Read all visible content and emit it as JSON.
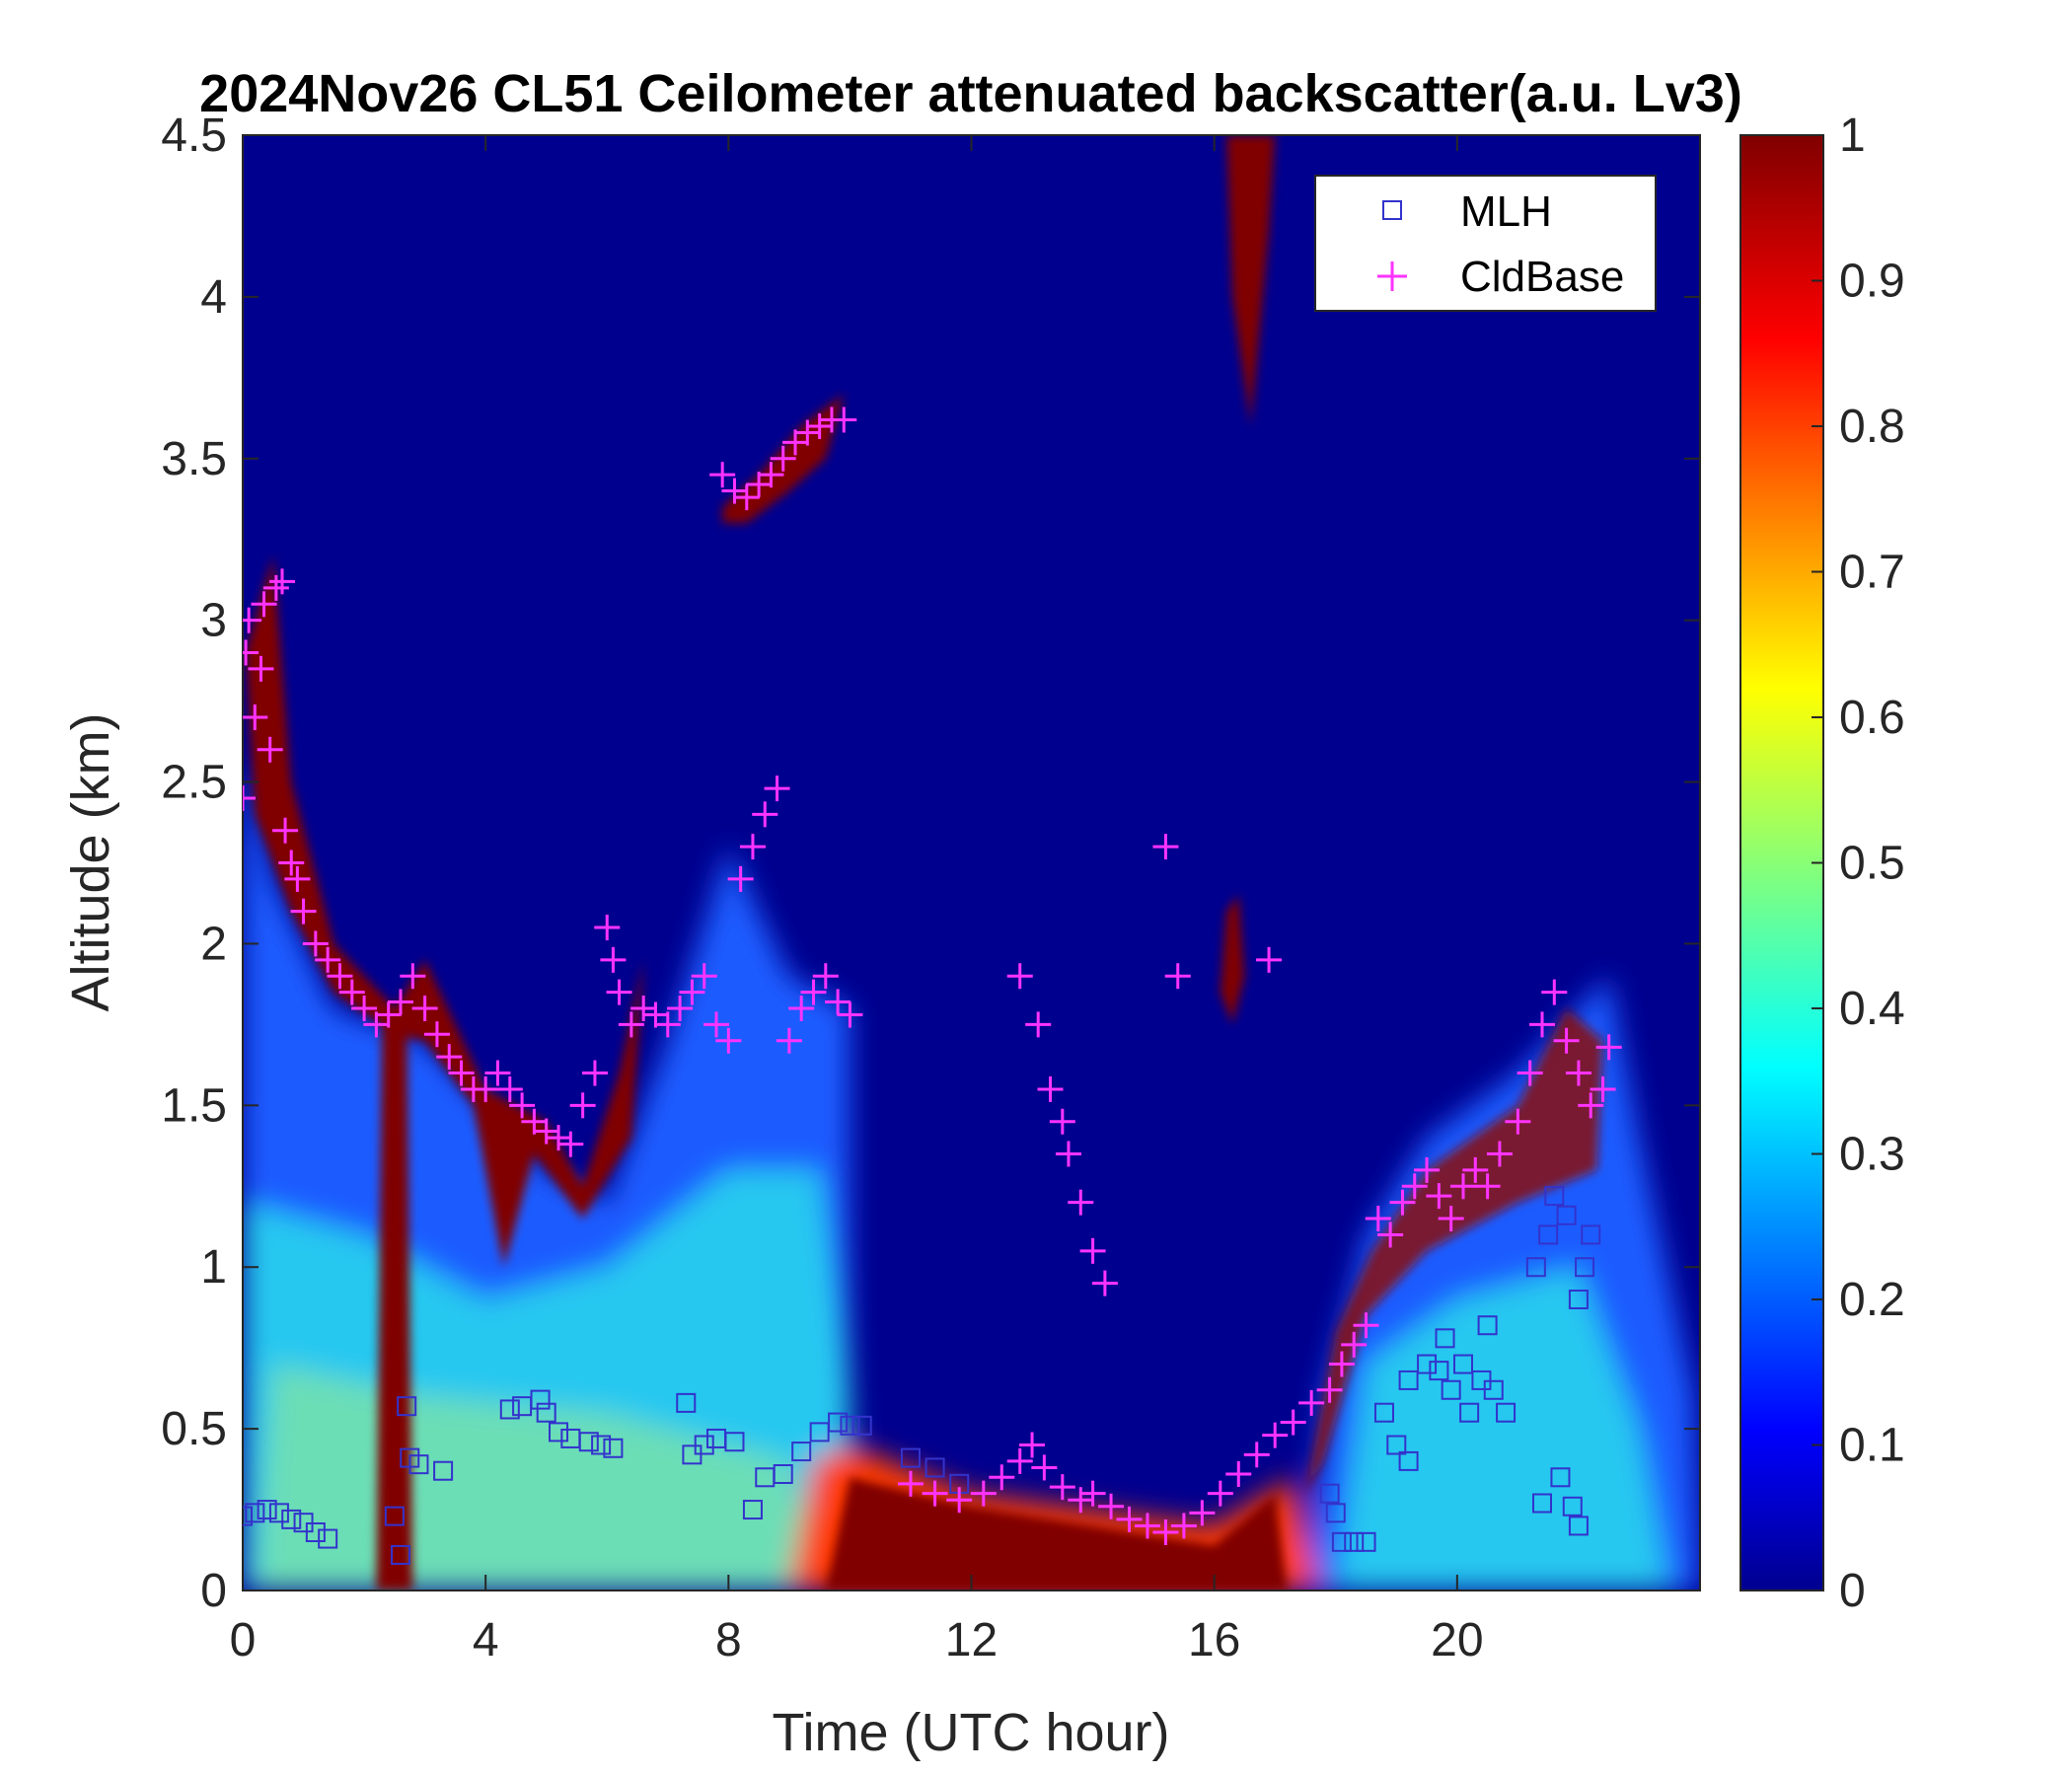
{
  "chart_data": {
    "type": "heatmap",
    "title": "2024Nov26 CL51 Ceilometer attenuated backscatter(a.u. Lv3)",
    "xlabel": "Time (UTC hour)",
    "ylabel": "Altitude (km)",
    "xlim": [
      0,
      24
    ],
    "ylim": [
      0,
      4.5
    ],
    "xticks": [
      0,
      4,
      8,
      12,
      16,
      20
    ],
    "xtick_labels": [
      "0",
      "4",
      "8",
      "12",
      "16",
      "20"
    ],
    "yticks": [
      0,
      0.5,
      1,
      1.5,
      2,
      2.5,
      3,
      3.5,
      4,
      4.5
    ],
    "ytick_labels": [
      "0",
      "0.5",
      "1",
      "1.5",
      "2",
      "2.5",
      "3",
      "3.5",
      "4",
      "4.5"
    ],
    "colorbar": {
      "colormap": "jet",
      "range": [
        0,
        1
      ],
      "ticks": [
        0,
        0.1,
        0.2,
        0.3,
        0.4,
        0.5,
        0.6,
        0.7,
        0.8,
        0.9,
        1
      ],
      "tick_labels": [
        "0",
        "0.1",
        "0.2",
        "0.3",
        "0.4",
        "0.5",
        "0.6",
        "0.7",
        "0.8",
        "0.9",
        "1"
      ]
    },
    "legend": {
      "placement": "top-right",
      "entries": [
        {
          "label": "MLH",
          "marker": "square",
          "color": "#3333cc"
        },
        {
          "label": "CldBase",
          "marker": "plus",
          "color": "#ff33ff"
        }
      ]
    },
    "series": [
      {
        "name": "MLH",
        "marker": "square",
        "color": "#3333cc",
        "points": [
          [
            0.0,
            0.23
          ],
          [
            0.2,
            0.24
          ],
          [
            0.4,
            0.25
          ],
          [
            0.6,
            0.24
          ],
          [
            0.8,
            0.22
          ],
          [
            1.0,
            0.21
          ],
          [
            1.2,
            0.18
          ],
          [
            1.4,
            0.16
          ],
          [
            2.5,
            0.23
          ],
          [
            2.6,
            0.11
          ],
          [
            2.7,
            0.57
          ],
          [
            2.75,
            0.41
          ],
          [
            2.9,
            0.39
          ],
          [
            3.3,
            0.37
          ],
          [
            4.4,
            0.56
          ],
          [
            4.6,
            0.57
          ],
          [
            4.9,
            0.59
          ],
          [
            5.0,
            0.55
          ],
          [
            5.2,
            0.49
          ],
          [
            5.4,
            0.47
          ],
          [
            5.7,
            0.46
          ],
          [
            5.9,
            0.45
          ],
          [
            6.1,
            0.44
          ],
          [
            7.3,
            0.58
          ],
          [
            7.4,
            0.42
          ],
          [
            7.6,
            0.45
          ],
          [
            7.8,
            0.47
          ],
          [
            8.1,
            0.46
          ],
          [
            8.4,
            0.25
          ],
          [
            8.6,
            0.35
          ],
          [
            8.9,
            0.36
          ],
          [
            9.2,
            0.43
          ],
          [
            9.5,
            0.49
          ],
          [
            9.8,
            0.52
          ],
          [
            10.0,
            0.51
          ],
          [
            10.2,
            0.51
          ],
          [
            11.0,
            0.41
          ],
          [
            11.4,
            0.38
          ],
          [
            11.8,
            0.33
          ],
          [
            17.9,
            0.3
          ],
          [
            18.0,
            0.24
          ],
          [
            18.1,
            0.15
          ],
          [
            18.3,
            0.15
          ],
          [
            18.5,
            0.15
          ],
          [
            18.8,
            0.55
          ],
          [
            19.0,
            0.45
          ],
          [
            19.2,
            0.4
          ],
          [
            19.2,
            0.65
          ],
          [
            19.5,
            0.7
          ],
          [
            19.7,
            0.68
          ],
          [
            19.8,
            0.78
          ],
          [
            19.9,
            0.62
          ],
          [
            20.1,
            0.7
          ],
          [
            20.2,
            0.55
          ],
          [
            20.4,
            0.65
          ],
          [
            20.6,
            0.62
          ],
          [
            20.8,
            0.55
          ],
          [
            20.5,
            0.82
          ],
          [
            21.4,
            0.27
          ],
          [
            21.7,
            0.35
          ],
          [
            21.9,
            0.26
          ],
          [
            22.0,
            0.2
          ],
          [
            21.3,
            1.0
          ],
          [
            21.5,
            1.1
          ],
          [
            21.6,
            1.22
          ],
          [
            21.8,
            1.16
          ],
          [
            22.0,
            0.9
          ],
          [
            22.1,
            1.0
          ],
          [
            22.2,
            1.1
          ]
        ]
      },
      {
        "name": "CldBase",
        "marker": "plus",
        "color": "#ff33ff",
        "points": [
          [
            0.0,
            2.45
          ],
          [
            0.05,
            2.9
          ],
          [
            0.1,
            3.0
          ],
          [
            0.2,
            2.7
          ],
          [
            0.3,
            2.85
          ],
          [
            0.35,
            3.05
          ],
          [
            0.45,
            2.6
          ],
          [
            0.55,
            3.1
          ],
          [
            0.65,
            3.12
          ],
          [
            0.7,
            2.35
          ],
          [
            0.8,
            2.25
          ],
          [
            0.9,
            2.2
          ],
          [
            1.0,
            2.1
          ],
          [
            1.2,
            2.0
          ],
          [
            1.4,
            1.95
          ],
          [
            1.6,
            1.9
          ],
          [
            1.8,
            1.85
          ],
          [
            2.0,
            1.8
          ],
          [
            2.2,
            1.75
          ],
          [
            2.4,
            1.78
          ],
          [
            2.6,
            1.82
          ],
          [
            2.8,
            1.9
          ],
          [
            3.0,
            1.8
          ],
          [
            3.2,
            1.72
          ],
          [
            3.4,
            1.65
          ],
          [
            3.6,
            1.6
          ],
          [
            3.8,
            1.55
          ],
          [
            4.0,
            1.55
          ],
          [
            4.2,
            1.6
          ],
          [
            4.4,
            1.55
          ],
          [
            4.6,
            1.5
          ],
          [
            4.8,
            1.45
          ],
          [
            5.0,
            1.42
          ],
          [
            5.2,
            1.4
          ],
          [
            5.4,
            1.38
          ],
          [
            5.6,
            1.5
          ],
          [
            5.8,
            1.6
          ],
          [
            6.0,
            2.05
          ],
          [
            6.1,
            1.95
          ],
          [
            6.2,
            1.85
          ],
          [
            6.4,
            1.75
          ],
          [
            6.6,
            1.8
          ],
          [
            6.8,
            1.78
          ],
          [
            7.0,
            1.75
          ],
          [
            7.2,
            1.8
          ],
          [
            7.4,
            1.85
          ],
          [
            7.6,
            1.9
          ],
          [
            7.8,
            1.75
          ],
          [
            8.0,
            1.7
          ],
          [
            8.2,
            2.2
          ],
          [
            8.4,
            2.3
          ],
          [
            8.6,
            2.4
          ],
          [
            8.8,
            2.48
          ],
          [
            9.0,
            1.7
          ],
          [
            9.2,
            1.8
          ],
          [
            9.4,
            1.85
          ],
          [
            9.6,
            1.9
          ],
          [
            9.8,
            1.82
          ],
          [
            10.0,
            1.78
          ],
          [
            7.9,
            3.45
          ],
          [
            8.1,
            3.4
          ],
          [
            8.3,
            3.38
          ],
          [
            8.5,
            3.42
          ],
          [
            8.7,
            3.45
          ],
          [
            8.9,
            3.5
          ],
          [
            9.1,
            3.55
          ],
          [
            9.3,
            3.58
          ],
          [
            9.5,
            3.6
          ],
          [
            9.7,
            3.62
          ],
          [
            9.9,
            3.62
          ],
          [
            11.0,
            0.33
          ],
          [
            11.4,
            0.3
          ],
          [
            11.8,
            0.28
          ],
          [
            12.2,
            0.3
          ],
          [
            12.5,
            0.35
          ],
          [
            12.8,
            0.4
          ],
          [
            13.0,
            0.45
          ],
          [
            13.2,
            0.38
          ],
          [
            13.5,
            0.32
          ],
          [
            13.8,
            0.28
          ],
          [
            14.0,
            0.3
          ],
          [
            14.3,
            0.26
          ],
          [
            14.6,
            0.22
          ],
          [
            14.9,
            0.2
          ],
          [
            15.2,
            0.18
          ],
          [
            15.5,
            0.2
          ],
          [
            15.8,
            0.24
          ],
          [
            16.1,
            0.3
          ],
          [
            16.4,
            0.36
          ],
          [
            16.7,
            0.42
          ],
          [
            17.0,
            0.48
          ],
          [
            17.3,
            0.52
          ],
          [
            17.6,
            0.58
          ],
          [
            17.9,
            0.62
          ],
          [
            18.1,
            0.7
          ],
          [
            18.3,
            0.76
          ],
          [
            18.5,
            0.82
          ],
          [
            12.8,
            1.9
          ],
          [
            13.1,
            1.75
          ],
          [
            13.3,
            1.55
          ],
          [
            13.5,
            1.45
          ],
          [
            13.6,
            1.35
          ],
          [
            13.8,
            1.2
          ],
          [
            14.0,
            1.05
          ],
          [
            14.2,
            0.95
          ],
          [
            15.2,
            2.3
          ],
          [
            15.4,
            1.9
          ],
          [
            16.9,
            1.95
          ],
          [
            18.7,
            1.15
          ],
          [
            18.9,
            1.1
          ],
          [
            19.1,
            1.2
          ],
          [
            19.3,
            1.25
          ],
          [
            19.5,
            1.3
          ],
          [
            19.7,
            1.22
          ],
          [
            19.9,
            1.15
          ],
          [
            20.1,
            1.25
          ],
          [
            20.3,
            1.3
          ],
          [
            20.5,
            1.25
          ],
          [
            20.7,
            1.35
          ],
          [
            21.0,
            1.45
          ],
          [
            21.2,
            1.6
          ],
          [
            21.4,
            1.75
          ],
          [
            21.6,
            1.85
          ],
          [
            21.8,
            1.7
          ],
          [
            22.0,
            1.6
          ],
          [
            22.2,
            1.5
          ],
          [
            22.4,
            1.55
          ],
          [
            22.5,
            1.68
          ]
        ]
      }
    ]
  }
}
